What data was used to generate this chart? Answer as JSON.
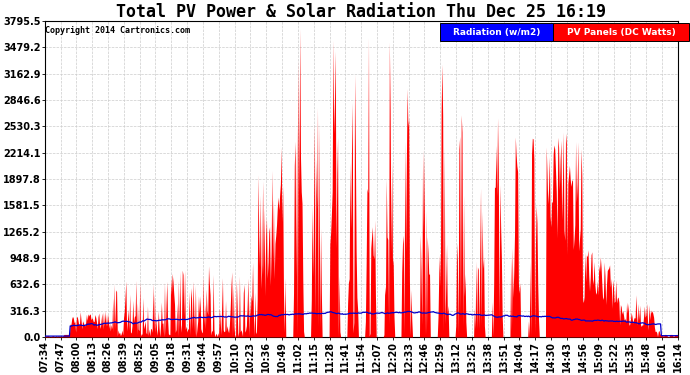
{
  "title": "Total PV Power & Solar Radiation Thu Dec 25 16:19",
  "copyright": "Copyright 2014 Cartronics.com",
  "legend_radiation": "Radiation (w/m2)",
  "legend_pv": "PV Panels (DC Watts)",
  "ymax": 3795.5,
  "yticks": [
    0.0,
    316.3,
    632.6,
    948.9,
    1265.2,
    1581.5,
    1897.8,
    2214.1,
    2530.3,
    2846.6,
    3162.9,
    3479.2,
    3795.5
  ],
  "background_color": "#ffffff",
  "plot_bg_color": "#ffffff",
  "grid_color": "#cccccc",
  "pv_color": "#ff0000",
  "radiation_color": "#0000cc",
  "title_fontsize": 12,
  "label_fontsize": 7,
  "xtick_labels": [
    "07:34",
    "07:47",
    "08:00",
    "08:13",
    "08:26",
    "08:39",
    "08:52",
    "09:05",
    "09:18",
    "09:31",
    "09:44",
    "09:57",
    "10:10",
    "10:23",
    "10:36",
    "10:49",
    "11:02",
    "11:15",
    "11:28",
    "11:41",
    "11:54",
    "12:07",
    "12:20",
    "12:33",
    "12:46",
    "12:59",
    "13:12",
    "13:25",
    "13:38",
    "13:51",
    "14:04",
    "14:17",
    "14:30",
    "14:43",
    "14:56",
    "15:09",
    "15:22",
    "15:35",
    "15:48",
    "16:01",
    "16:14"
  ]
}
